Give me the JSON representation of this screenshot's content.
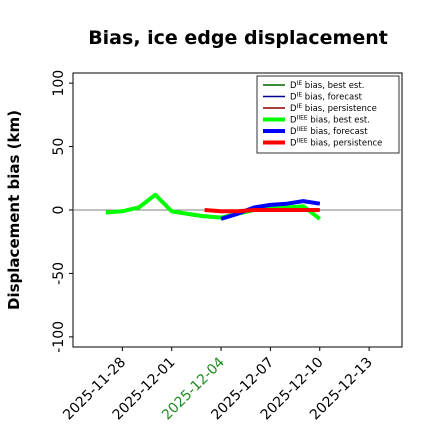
{
  "chart_data": {
    "type": "line",
    "title": "Bias, ice edge displacement",
    "xlabel": "",
    "ylabel": "Displacement bias (km)",
    "xlim": [
      "2025-11-25",
      "2025-12-15"
    ],
    "ylim": [
      -108,
      108
    ],
    "x_ticks": [
      "2025-11-28",
      "2025-12-01",
      "2025-12-04",
      "2025-12-07",
      "2025-12-10",
      "2025-12-13"
    ],
    "x_tick_colors": [
      "#000000",
      "#000000",
      "#228b22",
      "#000000",
      "#000000",
      "#000000"
    ],
    "y_ticks": [
      100,
      50,
      0,
      -50,
      -100
    ],
    "grid": false,
    "legend_position": "top-right",
    "zero_line": {
      "y": 0,
      "color": "#808080"
    },
    "series": [
      {
        "name": "D^IE bias, best est.",
        "color": "#006400",
        "width": 1.5,
        "x": [
          "2025-11-27",
          "2025-11-28",
          "2025-11-29",
          "2025-11-30",
          "2025-12-01",
          "2025-12-02",
          "2025-12-03"
        ],
        "y": [
          -3,
          -1,
          2,
          11,
          -2,
          -4,
          -6
        ]
      },
      {
        "name": "D^IE bias, forecast",
        "color": "#00008b",
        "width": 1.5,
        "x": [
          "2025-12-04",
          "2025-12-05",
          "2025-12-06",
          "2025-12-07",
          "2025-12-08",
          "2025-12-09",
          "2025-12-10"
        ],
        "y": [
          -7,
          -3,
          1,
          3,
          5,
          7,
          5
        ]
      },
      {
        "name": "D^IE bias, persistence",
        "color": "#8b0000",
        "width": 1.5,
        "x": [
          "2025-12-03",
          "2025-12-04",
          "2025-12-05",
          "2025-12-06",
          "2025-12-07",
          "2025-12-08",
          "2025-12-09",
          "2025-12-10"
        ],
        "y": [
          0,
          -2,
          -1,
          0,
          0,
          0,
          0,
          0
        ]
      },
      {
        "name": "D^IIEE bias, best est.",
        "color": "#00ff00",
        "width": 4,
        "x": [
          "2025-11-27",
          "2025-11-28",
          "2025-11-29",
          "2025-11-30",
          "2025-12-01",
          "2025-12-02",
          "2025-12-03",
          "2025-12-04",
          "2025-12-05",
          "2025-12-06",
          "2025-12-07",
          "2025-12-08",
          "2025-12-09",
          "2025-12-10"
        ],
        "y": [
          -2,
          -1,
          2,
          12,
          -1,
          -3,
          -5,
          -6,
          -3,
          0,
          1,
          2,
          3,
          -7
        ]
      },
      {
        "name": "D^IIEE bias, forecast",
        "color": "#0000ff",
        "width": 4,
        "x": [
          "2025-12-04",
          "2025-12-05",
          "2025-12-06",
          "2025-12-07",
          "2025-12-08",
          "2025-12-09",
          "2025-12-10"
        ],
        "y": [
          -7,
          -3,
          2,
          4,
          5,
          7,
          5
        ]
      },
      {
        "name": "D^IIEE bias, persistence",
        "color": "#ff0000",
        "width": 4,
        "x": [
          "2025-12-03",
          "2025-12-04",
          "2025-12-05",
          "2025-12-06",
          "2025-12-07",
          "2025-12-08",
          "2025-12-09",
          "2025-12-10"
        ],
        "y": [
          0,
          -1,
          -1,
          0,
          0,
          0,
          0,
          0
        ]
      }
    ],
    "legend": [
      {
        "prefix": "D",
        "sup": "IE",
        "text": " bias, best est."
      },
      {
        "prefix": "D",
        "sup": "IE",
        "text": " bias, forecast"
      },
      {
        "prefix": "D",
        "sup": "IE",
        "text": " bias, persistence"
      },
      {
        "prefix": "D",
        "sup": "IIEE",
        "text": " bias, best est."
      },
      {
        "prefix": "D",
        "sup": "IIEE",
        "text": " bias, forecast"
      },
      {
        "prefix": "D",
        "sup": "IIEE",
        "text": " bias, persistence"
      }
    ]
  }
}
